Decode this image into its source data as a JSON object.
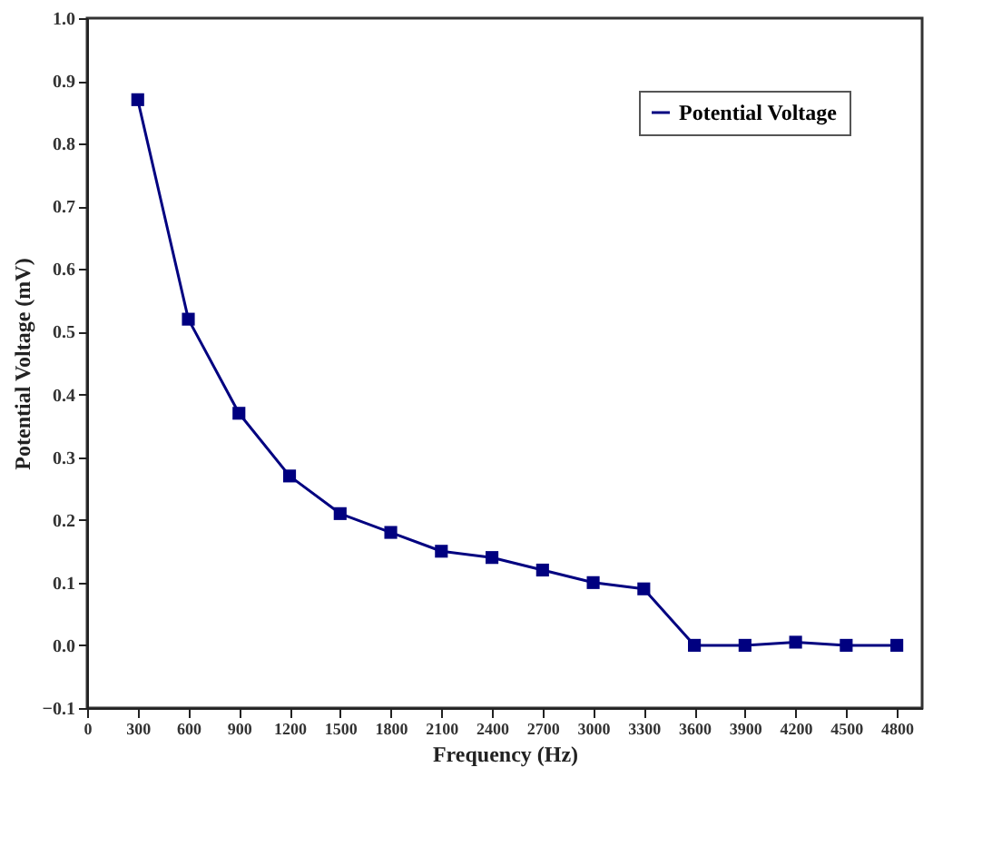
{
  "chart_data": {
    "type": "line",
    "xlabel": "Frequency (Hz)",
    "ylabel": "Potential Voltage (mV)",
    "x": [
      300,
      600,
      900,
      1200,
      1500,
      1800,
      2100,
      2400,
      2700,
      3000,
      3300,
      3600,
      3900,
      4200,
      4500,
      4800
    ],
    "series": [
      {
        "name": "Potential Voltage",
        "color": "#000080",
        "values": [
          0.87,
          0.52,
          0.37,
          0.27,
          0.21,
          0.18,
          0.15,
          0.14,
          0.12,
          0.1,
          0.09,
          0.0,
          0.0,
          0.005,
          0.0,
          0.0
        ]
      }
    ],
    "xlim": [
      0,
      4950
    ],
    "xticks": [
      0,
      300,
      600,
      900,
      1200,
      1500,
      1800,
      2100,
      2400,
      2700,
      3000,
      3300,
      3600,
      3900,
      4200,
      4500,
      4800
    ],
    "ylim": [
      -0.1,
      1.0
    ],
    "yticks": [
      -0.1,
      {
        "value": 0,
        "label": "0.0"
      },
      0.1,
      0.2,
      0.3,
      0.4,
      0.5,
      0.6,
      0.7,
      0.8,
      0.9,
      {
        "value": 1,
        "label": "1.0"
      }
    ],
    "grid": false,
    "legend": "top right",
    "marker": "square",
    "line_style": "solid"
  }
}
